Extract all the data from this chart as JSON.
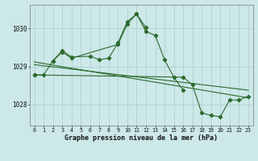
{
  "line1_x": [
    0,
    1,
    2,
    3,
    4,
    6,
    7,
    8,
    9,
    10,
    11,
    12
  ],
  "line1_y": [
    1028.78,
    1028.78,
    1029.15,
    1029.42,
    1029.25,
    1029.27,
    1029.18,
    1029.22,
    1029.62,
    1030.18,
    1030.38,
    1030.02
  ],
  "line2_x": [
    2,
    3,
    4,
    9,
    10,
    11,
    12,
    13,
    14,
    15,
    16
  ],
  "line2_y": [
    1029.15,
    1029.38,
    1029.22,
    1029.58,
    1030.12,
    1030.38,
    1029.92,
    1029.82,
    1029.18,
    1028.72,
    1028.38
  ],
  "line3_x": [
    0,
    16,
    17,
    18,
    19,
    20,
    21,
    22,
    23
  ],
  "line3_y": [
    1028.78,
    1028.72,
    1028.52,
    1027.78,
    1027.72,
    1027.68,
    1028.12,
    1028.12,
    1028.22
  ],
  "trend1_x": [
    0,
    23
  ],
  "trend1_y": [
    1029.12,
    1028.18
  ],
  "trend2_x": [
    0,
    23
  ],
  "trend2_y": [
    1029.05,
    1028.38
  ],
  "line_color": "#2d6a2d",
  "bg_color": "#cce8e8",
  "grid_color": "#aacccc",
  "xlabel": "Graphe pression niveau de la mer (hPa)",
  "yticks": [
    1028,
    1029,
    1030
  ],
  "xticks": [
    0,
    1,
    2,
    3,
    4,
    5,
    6,
    7,
    8,
    9,
    10,
    11,
    12,
    13,
    14,
    15,
    16,
    17,
    18,
    19,
    20,
    21,
    22,
    23
  ],
  "ylim": [
    1027.45,
    1030.62
  ],
  "xlim": [
    -0.5,
    23.5
  ]
}
